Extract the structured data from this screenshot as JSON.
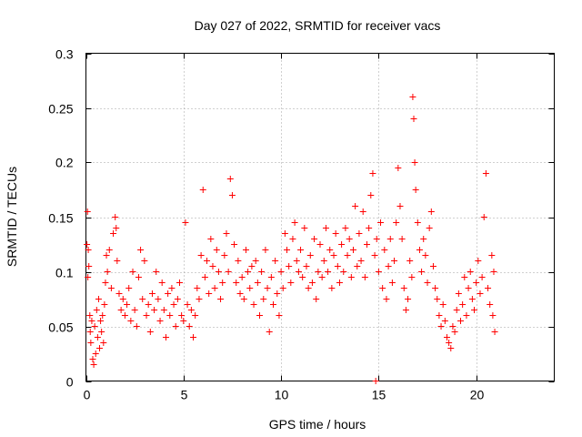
{
  "chart_data": {
    "type": "scatter",
    "title": "Day 027 of 2022, SRMTID for receiver vacs",
    "xlabel": "GPS time / hours",
    "ylabel": "SRMTID / TECUs",
    "xlim": [
      0,
      24
    ],
    "ylim": [
      0,
      0.3
    ],
    "xticks": [
      0,
      5,
      10,
      15,
      20
    ],
    "xtick_labels": [
      "0",
      "5",
      "10",
      "15",
      "20"
    ],
    "yticks": [
      0,
      0.05,
      0.1,
      0.15,
      0.2,
      0.25,
      0.3
    ],
    "ytick_labels": [
      "0",
      "0.05",
      "0.1",
      "0.15",
      "0.2",
      "0.25",
      "0.3"
    ],
    "grid": true,
    "marker": "+",
    "marker_color": "#ff0000",
    "series": [
      {
        "name": "vacs",
        "description": "approximate per-observation SRMTID values read from the scatter",
        "points": [
          [
            0.05,
            0.125
          ],
          [
            0.08,
            0.155
          ],
          [
            0.1,
            0.095
          ],
          [
            0.12,
            0.12
          ],
          [
            0.15,
            0.105
          ],
          [
            0.2,
            0.06
          ],
          [
            0.22,
            0.045
          ],
          [
            0.25,
            0.035
          ],
          [
            0.3,
            0.055
          ],
          [
            0.35,
            0.02
          ],
          [
            0.4,
            0.015
          ],
          [
            0.45,
            0.05
          ],
          [
            0.5,
            0.025
          ],
          [
            0.55,
            0.065
          ],
          [
            0.6,
            0.04
          ],
          [
            0.65,
            0.075
          ],
          [
            0.7,
            0.03
          ],
          [
            0.75,
            0.055
          ],
          [
            0.8,
            0.045
          ],
          [
            0.85,
            0.06
          ],
          [
            0.9,
            0.035
          ],
          [
            0.95,
            0.07
          ],
          [
            1.0,
            0.09
          ],
          [
            1.05,
            0.115
          ],
          [
            1.1,
            0.1
          ],
          [
            1.2,
            0.12
          ],
          [
            1.3,
            0.085
          ],
          [
            1.4,
            0.135
          ],
          [
            1.5,
            0.15
          ],
          [
            1.55,
            0.14
          ],
          [
            1.6,
            0.11
          ],
          [
            1.7,
            0.08
          ],
          [
            1.8,
            0.065
          ],
          [
            1.9,
            0.075
          ],
          [
            2.0,
            0.06
          ],
          [
            2.1,
            0.07
          ],
          [
            2.2,
            0.085
          ],
          [
            2.3,
            0.055
          ],
          [
            2.4,
            0.1
          ],
          [
            2.5,
            0.065
          ],
          [
            2.6,
            0.05
          ],
          [
            2.7,
            0.095
          ],
          [
            2.8,
            0.12
          ],
          [
            2.9,
            0.075
          ],
          [
            3.0,
            0.11
          ],
          [
            3.1,
            0.06
          ],
          [
            3.2,
            0.07
          ],
          [
            3.3,
            0.045
          ],
          [
            3.4,
            0.08
          ],
          [
            3.5,
            0.065
          ],
          [
            3.6,
            0.1
          ],
          [
            3.7,
            0.075
          ],
          [
            3.8,
            0.055
          ],
          [
            3.9,
            0.09
          ],
          [
            4.0,
            0.065
          ],
          [
            4.1,
            0.04
          ],
          [
            4.2,
            0.08
          ],
          [
            4.3,
            0.06
          ],
          [
            4.4,
            0.085
          ],
          [
            4.5,
            0.07
          ],
          [
            4.6,
            0.05
          ],
          [
            4.7,
            0.075
          ],
          [
            4.8,
            0.09
          ],
          [
            4.9,
            0.06
          ],
          [
            5.0,
            0.055
          ],
          [
            5.1,
            0.145
          ],
          [
            5.2,
            0.07
          ],
          [
            5.3,
            0.05
          ],
          [
            5.4,
            0.065
          ],
          [
            5.5,
            0.04
          ],
          [
            5.6,
            0.06
          ],
          [
            5.7,
            0.085
          ],
          [
            5.8,
            0.075
          ],
          [
            5.9,
            0.115
          ],
          [
            6.0,
            0.175
          ],
          [
            6.1,
            0.095
          ],
          [
            6.2,
            0.11
          ],
          [
            6.3,
            0.08
          ],
          [
            6.4,
            0.13
          ],
          [
            6.5,
            0.105
          ],
          [
            6.6,
            0.085
          ],
          [
            6.7,
            0.12
          ],
          [
            6.8,
            0.1
          ],
          [
            6.9,
            0.075
          ],
          [
            7.0,
            0.09
          ],
          [
            7.1,
            0.115
          ],
          [
            7.2,
            0.135
          ],
          [
            7.3,
            0.1
          ],
          [
            7.4,
            0.185
          ],
          [
            7.5,
            0.17
          ],
          [
            7.6,
            0.125
          ],
          [
            7.7,
            0.09
          ],
          [
            7.8,
            0.11
          ],
          [
            7.9,
            0.08
          ],
          [
            8.0,
            0.095
          ],
          [
            8.1,
            0.075
          ],
          [
            8.2,
            0.12
          ],
          [
            8.3,
            0.1
          ],
          [
            8.4,
            0.085
          ],
          [
            8.5,
            0.105
          ],
          [
            8.6,
            0.07
          ],
          [
            8.7,
            0.11
          ],
          [
            8.8,
            0.09
          ],
          [
            8.9,
            0.06
          ],
          [
            9.0,
            0.1
          ],
          [
            9.1,
            0.075
          ],
          [
            9.2,
            0.12
          ],
          [
            9.3,
            0.085
          ],
          [
            9.4,
            0.045
          ],
          [
            9.5,
            0.095
          ],
          [
            9.6,
            0.07
          ],
          [
            9.7,
            0.11
          ],
          [
            9.8,
            0.08
          ],
          [
            9.9,
            0.06
          ],
          [
            10.0,
            0.1
          ],
          [
            10.1,
            0.085
          ],
          [
            10.2,
            0.135
          ],
          [
            10.3,
            0.12
          ],
          [
            10.4,
            0.105
          ],
          [
            10.5,
            0.09
          ],
          [
            10.6,
            0.13
          ],
          [
            10.7,
            0.145
          ],
          [
            10.8,
            0.11
          ],
          [
            10.9,
            0.1
          ],
          [
            11.0,
            0.12
          ],
          [
            11.1,
            0.095
          ],
          [
            11.2,
            0.14
          ],
          [
            11.3,
            0.105
          ],
          [
            11.4,
            0.085
          ],
          [
            11.5,
            0.115
          ],
          [
            11.6,
            0.09
          ],
          [
            11.7,
            0.13
          ],
          [
            11.8,
            0.075
          ],
          [
            11.9,
            0.1
          ],
          [
            12.0,
            0.125
          ],
          [
            12.1,
            0.095
          ],
          [
            12.2,
            0.11
          ],
          [
            12.3,
            0.14
          ],
          [
            12.4,
            0.1
          ],
          [
            12.5,
            0.12
          ],
          [
            12.6,
            0.085
          ],
          [
            12.7,
            0.115
          ],
          [
            12.8,
            0.135
          ],
          [
            12.9,
            0.105
          ],
          [
            13.0,
            0.09
          ],
          [
            13.1,
            0.125
          ],
          [
            13.2,
            0.1
          ],
          [
            13.3,
            0.14
          ],
          [
            13.4,
            0.115
          ],
          [
            13.5,
            0.13
          ],
          [
            13.6,
            0.095
          ],
          [
            13.7,
            0.12
          ],
          [
            13.8,
            0.16
          ],
          [
            13.9,
            0.105
          ],
          [
            14.0,
            0.135
          ],
          [
            14.1,
            0.11
          ],
          [
            14.2,
            0.155
          ],
          [
            14.3,
            0.095
          ],
          [
            14.4,
            0.125
          ],
          [
            14.5,
            0.14
          ],
          [
            14.6,
            0.17
          ],
          [
            14.7,
            0.19
          ],
          [
            14.8,
            0.115
          ],
          [
            14.85,
            0.0
          ],
          [
            14.9,
            0.13
          ],
          [
            15.0,
            0.1
          ],
          [
            15.1,
            0.145
          ],
          [
            15.2,
            0.085
          ],
          [
            15.3,
            0.12
          ],
          [
            15.4,
            0.075
          ],
          [
            15.5,
            0.105
          ],
          [
            15.6,
            0.13
          ],
          [
            15.7,
            0.09
          ],
          [
            15.8,
            0.11
          ],
          [
            15.9,
            0.145
          ],
          [
            16.0,
            0.195
          ],
          [
            16.1,
            0.16
          ],
          [
            16.2,
            0.13
          ],
          [
            16.3,
            0.085
          ],
          [
            16.4,
            0.065
          ],
          [
            16.5,
            0.075
          ],
          [
            16.6,
            0.11
          ],
          [
            16.7,
            0.095
          ],
          [
            16.75,
            0.26
          ],
          [
            16.8,
            0.24
          ],
          [
            16.85,
            0.2
          ],
          [
            16.9,
            0.175
          ],
          [
            17.0,
            0.145
          ],
          [
            17.1,
            0.12
          ],
          [
            17.2,
            0.1
          ],
          [
            17.3,
            0.13
          ],
          [
            17.4,
            0.115
          ],
          [
            17.5,
            0.09
          ],
          [
            17.6,
            0.14
          ],
          [
            17.7,
            0.155
          ],
          [
            17.8,
            0.105
          ],
          [
            17.9,
            0.085
          ],
          [
            18.0,
            0.075
          ],
          [
            18.1,
            0.06
          ],
          [
            18.2,
            0.05
          ],
          [
            18.3,
            0.07
          ],
          [
            18.4,
            0.055
          ],
          [
            18.5,
            0.04
          ],
          [
            18.6,
            0.035
          ],
          [
            18.7,
            0.03
          ],
          [
            18.8,
            0.05
          ],
          [
            18.9,
            0.045
          ],
          [
            19.0,
            0.065
          ],
          [
            19.1,
            0.08
          ],
          [
            19.2,
            0.055
          ],
          [
            19.3,
            0.07
          ],
          [
            19.4,
            0.095
          ],
          [
            19.5,
            0.06
          ],
          [
            19.6,
            0.085
          ],
          [
            19.7,
            0.1
          ],
          [
            19.8,
            0.075
          ],
          [
            19.9,
            0.065
          ],
          [
            20.0,
            0.09
          ],
          [
            20.1,
            0.11
          ],
          [
            20.2,
            0.08
          ],
          [
            20.3,
            0.095
          ],
          [
            20.4,
            0.15
          ],
          [
            20.5,
            0.19
          ],
          [
            20.6,
            0.085
          ],
          [
            20.7,
            0.07
          ],
          [
            20.8,
            0.115
          ],
          [
            20.85,
            0.06
          ],
          [
            20.9,
            0.1
          ],
          [
            20.95,
            0.045
          ]
        ]
      }
    ]
  }
}
